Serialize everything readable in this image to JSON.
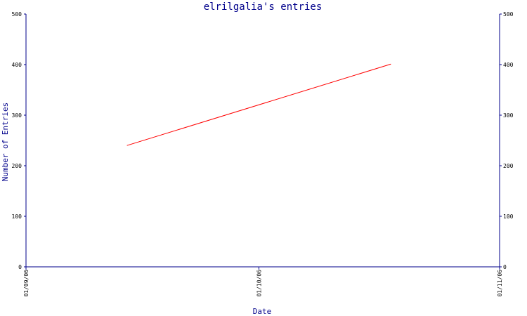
{
  "chart_data": {
    "type": "line",
    "title": "elrilgalia's entries",
    "xlabel": "Date",
    "ylabel": "Number of Entries",
    "x_ticks": [
      "01/09/06",
      "01/10/06",
      "01/11/06"
    ],
    "y_ticks": [
      "0",
      "100",
      "200",
      "300",
      "400",
      "500"
    ],
    "ylim": [
      0,
      500
    ],
    "grid": false,
    "series": [
      {
        "x": [
          "2006-09-14",
          "2006-10-18"
        ],
        "values": [
          240,
          401
        ],
        "color": "#ff0000"
      }
    ],
    "colors": {
      "axis": "#00008b",
      "title": "#00008b",
      "tick_text": "#000000"
    }
  }
}
